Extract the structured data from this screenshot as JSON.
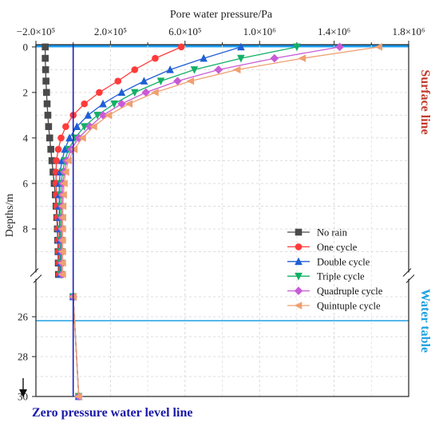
{
  "chart_data": {
    "type": "line",
    "title": "",
    "xlabel": "Pore water pressure/Pa",
    "ylabel": "Depths/m",
    "xlim": [
      -200000,
      1800000
    ],
    "y_axis_segments": [
      {
        "range": [
          -0.1,
          10
        ],
        "ticks": [
          0,
          2,
          4,
          6,
          8
        ]
      },
      {
        "range": [
          24,
          30
        ],
        "ticks": [
          26,
          28,
          30
        ]
      }
    ],
    "x_ticks": [
      {
        "value": -200000,
        "label": "−2.0×10⁵"
      },
      {
        "value": 200000,
        "label": "2.0×10⁵"
      },
      {
        "value": 600000,
        "label": "6.0×10⁵"
      },
      {
        "value": 1000000,
        "label": "1.0×10⁶"
      },
      {
        "value": 1400000,
        "label": "1.4×10⁶"
      },
      {
        "value": 1800000,
        "label": "1.8×10⁶"
      }
    ],
    "grid": true,
    "legend_position": "bottom-right",
    "series": [
      {
        "name": "No rain",
        "color": "#4a4a4a",
        "marker": "square",
        "points": [
          [
            -150000,
            0
          ],
          [
            -150000,
            0.5
          ],
          [
            -148000,
            1
          ],
          [
            -146000,
            1.5
          ],
          [
            -143000,
            2
          ],
          [
            -140000,
            2.5
          ],
          [
            -136000,
            3
          ],
          [
            -132000,
            3.5
          ],
          [
            -126000,
            4
          ],
          [
            -120000,
            4.5
          ],
          [
            -114000,
            5
          ],
          [
            -108000,
            5.5
          ],
          [
            -102000,
            6
          ],
          [
            -96000,
            6.5
          ],
          [
            -92000,
            7
          ],
          [
            -88000,
            7.5
          ],
          [
            -85000,
            8
          ],
          [
            -83000,
            8.5
          ],
          [
            -81000,
            9
          ],
          [
            -80000,
            9.5
          ],
          [
            -79000,
            10
          ],
          [
            0,
            25
          ],
          [
            30000,
            30
          ]
        ]
      },
      {
        "name": "One cycle",
        "color": "#ff3b3b",
        "marker": "circle",
        "points": [
          [
            580000,
            0
          ],
          [
            440000,
            0.5
          ],
          [
            330000,
            1
          ],
          [
            240000,
            1.5
          ],
          [
            140000,
            2
          ],
          [
            60000,
            2.5
          ],
          [
            0,
            3
          ],
          [
            -40000,
            3.5
          ],
          [
            -65000,
            4
          ],
          [
            -80000,
            4.5
          ],
          [
            -90000,
            5
          ],
          [
            -92000,
            5.5
          ],
          [
            -92000,
            6
          ],
          [
            -90000,
            6.5
          ],
          [
            -88000,
            7
          ],
          [
            -85000,
            7.5
          ],
          [
            -82000,
            8
          ],
          [
            -80000,
            8.5
          ],
          [
            -78000,
            9
          ],
          [
            -76000,
            9.5
          ],
          [
            -75000,
            10
          ],
          [
            0,
            25
          ],
          [
            30000,
            30
          ]
        ]
      },
      {
        "name": "Double cycle",
        "color": "#1f5fd6",
        "marker": "triangle-up",
        "points": [
          [
            900000,
            0
          ],
          [
            700000,
            0.5
          ],
          [
            520000,
            1
          ],
          [
            380000,
            1.5
          ],
          [
            260000,
            2
          ],
          [
            160000,
            2.5
          ],
          [
            80000,
            3
          ],
          [
            20000,
            3.5
          ],
          [
            -20000,
            4
          ],
          [
            -45000,
            4.5
          ],
          [
            -60000,
            5
          ],
          [
            -70000,
            5.5
          ],
          [
            -74000,
            6
          ],
          [
            -75000,
            6.5
          ],
          [
            -75000,
            7
          ],
          [
            -74000,
            7.5
          ],
          [
            -73000,
            8
          ],
          [
            -72000,
            8.5
          ],
          [
            -71000,
            9
          ],
          [
            -70000,
            9.5
          ],
          [
            -70000,
            10
          ],
          [
            0,
            25
          ],
          [
            30000,
            30
          ]
        ]
      },
      {
        "name": "Triple cycle",
        "color": "#12b066",
        "marker": "triangle-down",
        "points": [
          [
            1200000,
            0
          ],
          [
            900000,
            0.5
          ],
          [
            650000,
            1
          ],
          [
            470000,
            1.5
          ],
          [
            330000,
            2
          ],
          [
            220000,
            2.5
          ],
          [
            130000,
            3
          ],
          [
            60000,
            3.5
          ],
          [
            10000,
            4
          ],
          [
            -25000,
            4.5
          ],
          [
            -45000,
            5
          ],
          [
            -58000,
            5.5
          ],
          [
            -64000,
            6
          ],
          [
            -67000,
            6.5
          ],
          [
            -68000,
            7
          ],
          [
            -68000,
            7.5
          ],
          [
            -67000,
            8
          ],
          [
            -66000,
            8.5
          ],
          [
            -66000,
            9
          ],
          [
            -65000,
            9.5
          ],
          [
            -65000,
            10
          ],
          [
            0,
            25
          ],
          [
            30000,
            30
          ]
        ]
      },
      {
        "name": "Quadruple cycle",
        "color": "#c85bd6",
        "marker": "diamond",
        "points": [
          [
            1430000,
            0
          ],
          [
            1080000,
            0.5
          ],
          [
            780000,
            1
          ],
          [
            560000,
            1.5
          ],
          [
            390000,
            2
          ],
          [
            260000,
            2.5
          ],
          [
            160000,
            3
          ],
          [
            90000,
            3.5
          ],
          [
            30000,
            4
          ],
          [
            -10000,
            4.5
          ],
          [
            -35000,
            5
          ],
          [
            -48000,
            5.5
          ],
          [
            -55000,
            6
          ],
          [
            -58000,
            6.5
          ],
          [
            -60000,
            7
          ],
          [
            -61000,
            7.5
          ],
          [
            -61000,
            8
          ],
          [
            -61000,
            8.5
          ],
          [
            -61000,
            9
          ],
          [
            -61000,
            9.5
          ],
          [
            -61000,
            10
          ],
          [
            0,
            25
          ],
          [
            30000,
            30
          ]
        ]
      },
      {
        "name": "Quintuple cycle",
        "color": "#f0a070",
        "marker": "triangle-left",
        "points": [
          [
            1640000,
            0
          ],
          [
            1230000,
            0.5
          ],
          [
            880000,
            1
          ],
          [
            630000,
            1.5
          ],
          [
            440000,
            2
          ],
          [
            300000,
            2.5
          ],
          [
            190000,
            3
          ],
          [
            110000,
            3.5
          ],
          [
            50000,
            4
          ],
          [
            5000,
            4.5
          ],
          [
            -25000,
            5
          ],
          [
            -40000,
            5.5
          ],
          [
            -48000,
            6
          ],
          [
            -52000,
            6.5
          ],
          [
            -55000,
            7
          ],
          [
            -56000,
            7.5
          ],
          [
            -57000,
            8
          ],
          [
            -57000,
            8.5
          ],
          [
            -57000,
            9
          ],
          [
            -57000,
            9.5
          ],
          [
            -57000,
            10
          ],
          [
            0,
            25
          ],
          [
            30000,
            30
          ]
        ]
      },
      {
        "name": "Zero pressure water level line",
        "color": "#2020c0",
        "marker": "none",
        "points": [
          [
            0,
            -0.1
          ],
          [
            0,
            30
          ]
        ]
      }
    ],
    "annotations": {
      "surface_line": {
        "label": "Surface line",
        "color": "#c0392b",
        "depth": 0
      },
      "water_table": {
        "label": "Water table",
        "color": "#1fa0e0",
        "depth": 26.2
      },
      "zero_pressure_line": {
        "label": "Zero pressure water level line",
        "color": "#1a1aa8",
        "pressure": 0
      },
      "ground_band_color": "#1a9cf0"
    }
  }
}
